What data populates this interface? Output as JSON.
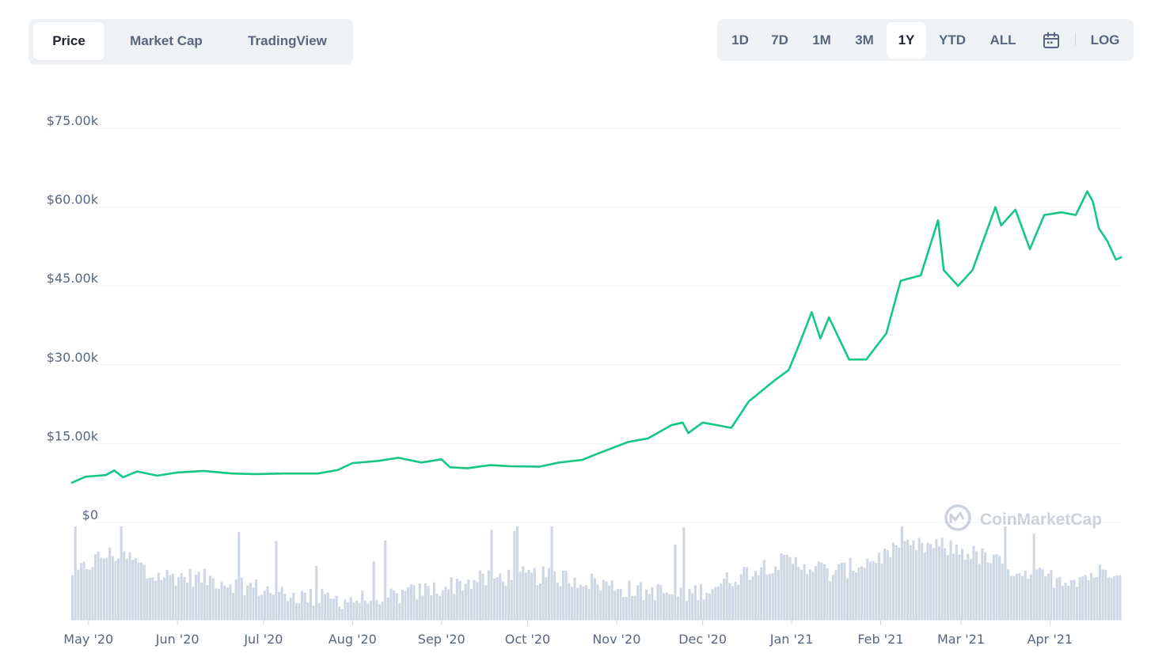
{
  "tabs": [
    {
      "label": "Price",
      "active": true
    },
    {
      "label": "Market Cap",
      "active": false
    },
    {
      "label": "TradingView",
      "active": false
    }
  ],
  "ranges": [
    {
      "label": "1D",
      "active": false
    },
    {
      "label": "7D",
      "active": false
    },
    {
      "label": "1M",
      "active": false
    },
    {
      "label": "3M",
      "active": false
    },
    {
      "label": "1Y",
      "active": true
    },
    {
      "label": "YTD",
      "active": false
    },
    {
      "label": "ALL",
      "active": false
    }
  ],
  "calendar_icon": "calendar-icon",
  "log_label": "LOG",
  "watermark": "CoinMarketCap",
  "colors": {
    "line": "#16c784",
    "volume": "#cfd6e4",
    "grid": "#eff2f5",
    "axis_text": "#58667e",
    "accent_bg": "#eff2f5"
  },
  "chart_data": {
    "type": "line",
    "ylim": [
      0,
      75000
    ],
    "y_ticks": [
      {
        "value": 75000,
        "label": "$75.00k"
      },
      {
        "value": 60000,
        "label": "$60.00k"
      },
      {
        "value": 45000,
        "label": "$45.00k"
      },
      {
        "value": 30000,
        "label": "$30.00k"
      },
      {
        "value": 15000,
        "label": "$15.00k"
      },
      {
        "value": 0,
        "label": "$0"
      }
    ],
    "x_ticks": [
      {
        "date": "2020-05-01",
        "label": "May '20"
      },
      {
        "date": "2020-06-01",
        "label": "Jun '20"
      },
      {
        "date": "2020-07-01",
        "label": "Jul '20"
      },
      {
        "date": "2020-08-01",
        "label": "Aug '20"
      },
      {
        "date": "2020-09-01",
        "label": "Sep '20"
      },
      {
        "date": "2020-10-01",
        "label": "Oct '20"
      },
      {
        "date": "2020-11-01",
        "label": "Nov '20"
      },
      {
        "date": "2020-12-01",
        "label": "Dec '20"
      },
      {
        "date": "2021-01-01",
        "label": "Jan '21"
      },
      {
        "date": "2021-02-01",
        "label": "Feb '21"
      },
      {
        "date": "2021-03-01",
        "label": "Mar '21"
      },
      {
        "date": "2021-04-01",
        "label": "Apr '21"
      }
    ],
    "grid": true,
    "series": [
      {
        "values": [
          [
            "2020-04-25",
            7500
          ],
          [
            "2020-04-30",
            8700
          ],
          [
            "2020-05-07",
            9000
          ],
          [
            "2020-05-10",
            9900
          ],
          [
            "2020-05-13",
            8600
          ],
          [
            "2020-05-18",
            9700
          ],
          [
            "2020-05-25",
            8900
          ],
          [
            "2020-06-01",
            9500
          ],
          [
            "2020-06-10",
            9800
          ],
          [
            "2020-06-20",
            9300
          ],
          [
            "2020-06-28",
            9200
          ],
          [
            "2020-07-08",
            9300
          ],
          [
            "2020-07-20",
            9300
          ],
          [
            "2020-07-27",
            10000
          ],
          [
            "2020-08-01",
            11300
          ],
          [
            "2020-08-10",
            11700
          ],
          [
            "2020-08-17",
            12300
          ],
          [
            "2020-08-25",
            11400
          ],
          [
            "2020-09-01",
            12000
          ],
          [
            "2020-09-04",
            10500
          ],
          [
            "2020-09-10",
            10300
          ],
          [
            "2020-09-18",
            10900
          ],
          [
            "2020-09-25",
            10700
          ],
          [
            "2020-10-05",
            10600
          ],
          [
            "2020-10-12",
            11400
          ],
          [
            "2020-10-20",
            11900
          ],
          [
            "2020-10-25",
            13000
          ],
          [
            "2020-11-05",
            15300
          ],
          [
            "2020-11-12",
            16000
          ],
          [
            "2020-11-20",
            18500
          ],
          [
            "2020-11-24",
            19000
          ],
          [
            "2020-11-26",
            17000
          ],
          [
            "2020-12-01",
            19000
          ],
          [
            "2020-12-11",
            18000
          ],
          [
            "2020-12-17",
            23000
          ],
          [
            "2020-12-26",
            27000
          ],
          [
            "2020-12-31",
            29000
          ],
          [
            "2021-01-03",
            33000
          ],
          [
            "2021-01-08",
            40000
          ],
          [
            "2021-01-11",
            35000
          ],
          [
            "2021-01-14",
            39000
          ],
          [
            "2021-01-21",
            31000
          ],
          [
            "2021-01-27",
            31000
          ],
          [
            "2021-02-03",
            36000
          ],
          [
            "2021-02-08",
            46000
          ],
          [
            "2021-02-15",
            47000
          ],
          [
            "2021-02-21",
            57500
          ],
          [
            "2021-02-23",
            48000
          ],
          [
            "2021-02-28",
            45000
          ],
          [
            "2021-03-05",
            48000
          ],
          [
            "2021-03-13",
            60000
          ],
          [
            "2021-03-15",
            56500
          ],
          [
            "2021-03-20",
            59500
          ],
          [
            "2021-03-25",
            52000
          ],
          [
            "2021-03-30",
            58500
          ],
          [
            "2021-04-05",
            59000
          ],
          [
            "2021-04-10",
            58500
          ],
          [
            "2021-04-14",
            63000
          ],
          [
            "2021-04-16",
            61000
          ],
          [
            "2021-04-18",
            56000
          ],
          [
            "2021-04-21",
            53500
          ],
          [
            "2021-04-24",
            50000
          ],
          [
            "2021-04-26",
            50500
          ]
        ]
      }
    ],
    "volume": {
      "shown": true,
      "color": "#cfd6e4"
    }
  }
}
